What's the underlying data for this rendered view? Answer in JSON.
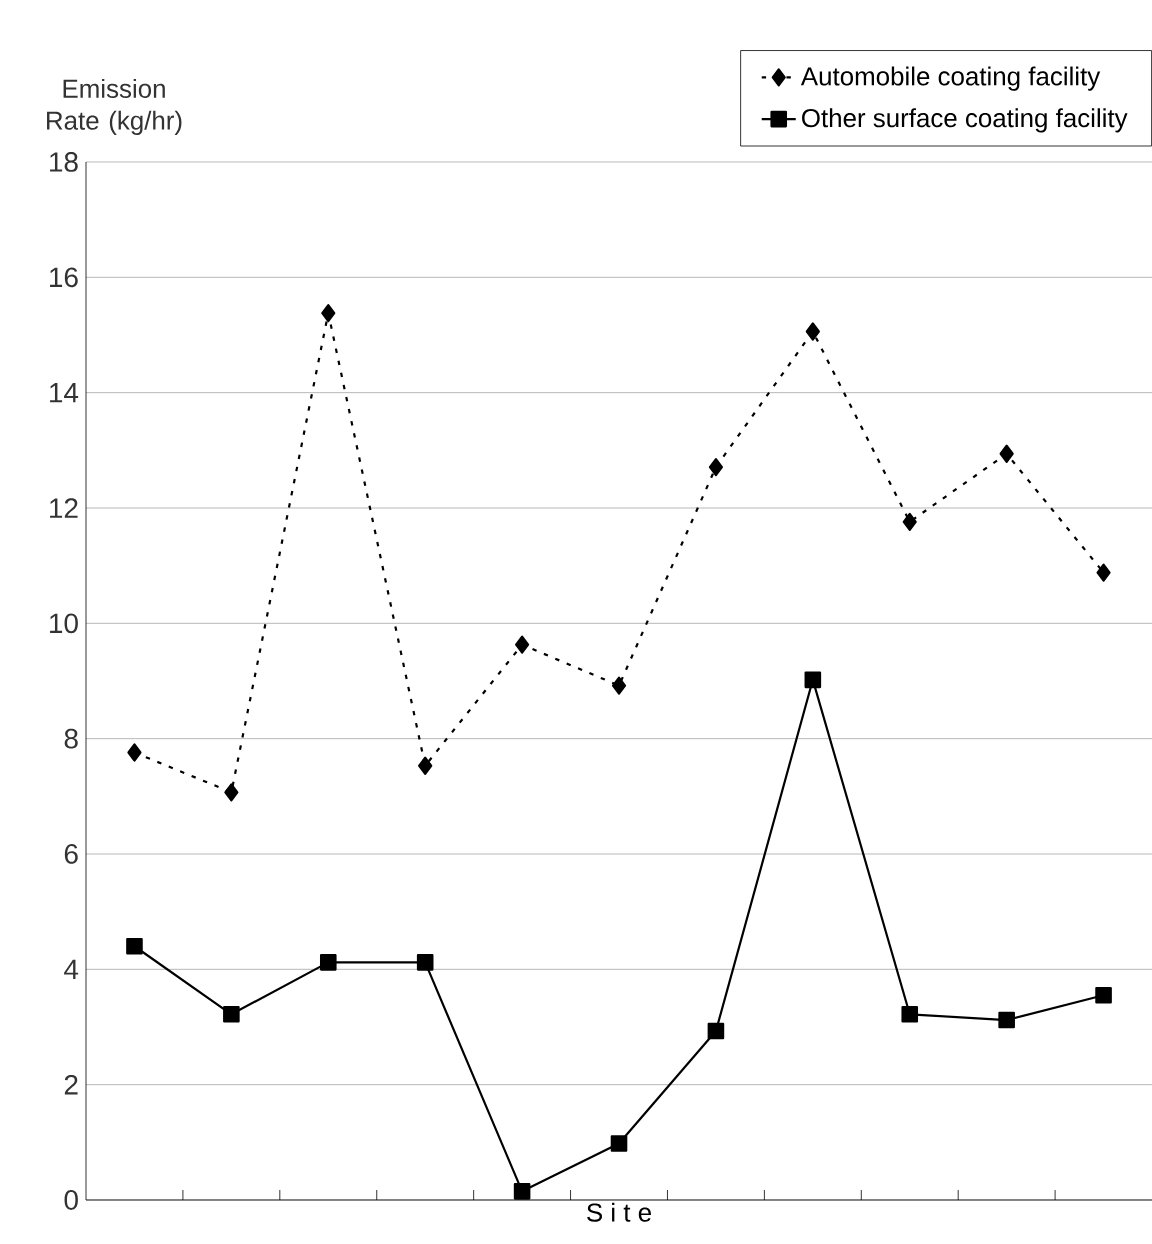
{
  "chart_data": {
    "type": "line",
    "xlabel": "S i t e",
    "ylabel": "Emission Rate (kg/hr)",
    "categories": [
      null,
      null,
      null,
      null,
      null,
      null,
      null,
      null,
      null,
      null,
      null
    ],
    "series": [
      {
        "name": "Automobile coating facility",
        "color": "#000000",
        "marker": "diamond",
        "line_style": "dashed",
        "values": [
          7.76,
          7.07,
          15.38,
          7.53,
          9.63,
          8.92,
          12.71,
          15.06,
          11.76,
          12.94,
          10.88
        ]
      },
      {
        "name": "Other surface coating facility",
        "color": "#000000",
        "marker": "square",
        "line_style": "solid",
        "values": [
          4.4,
          3.22,
          4.12,
          4.12,
          0.15,
          0.98,
          2.93,
          9.02,
          3.22,
          3.12,
          3.55
        ]
      }
    ],
    "ylim": [
      0,
      18
    ],
    "yticks": [
      0,
      2,
      4,
      6,
      8,
      10,
      12,
      14,
      16,
      18
    ],
    "grid": "y",
    "legend": "top right"
  }
}
